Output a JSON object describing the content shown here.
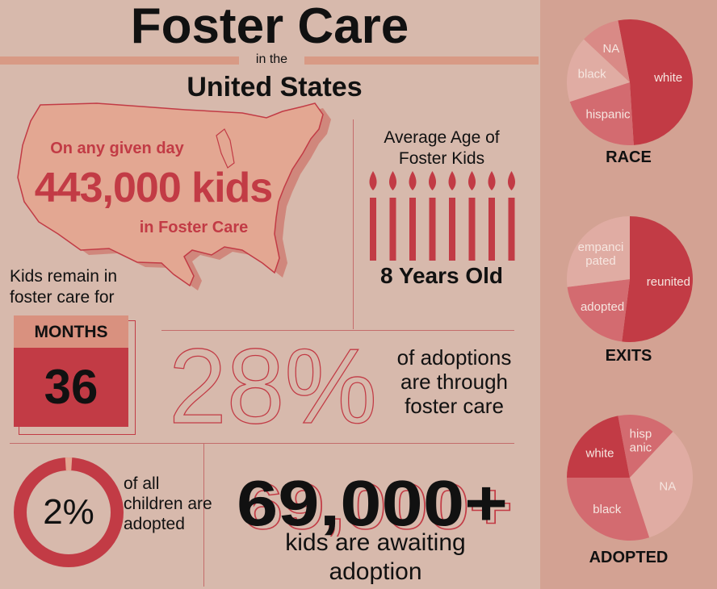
{
  "header": {
    "title": "Foster Care",
    "connector": "in the",
    "subtitle": "United States"
  },
  "map_panel": {
    "line1": "On any given day",
    "big": "443,000 kids",
    "line2": "in Foster Care"
  },
  "age_panel": {
    "title": "Average Age of Foster Kids",
    "candles": 8,
    "result": "8 Years Old"
  },
  "months_panel": {
    "intro": "Kids remain in foster care for",
    "unit": "MONTHS",
    "value": "36"
  },
  "adoptions_panel": {
    "percent": "28%",
    "text": "of adoptions are through foster care"
  },
  "adopted_panel": {
    "percent": "2%",
    "fraction": 0.02,
    "text": "of all children are adopted"
  },
  "awaiting_panel": {
    "number": "69,000+",
    "text": "kids are awaiting adoption"
  },
  "pies": [
    {
      "title": "RACE",
      "slices": [
        {
          "label": "white",
          "share": 0.52,
          "color": "#c23b45"
        },
        {
          "label": "hispanic",
          "share": 0.21,
          "color": "#d36b70"
        },
        {
          "label": "black",
          "share": 0.17,
          "color": "#e0aca3"
        },
        {
          "label": "NA",
          "share": 0.1,
          "color": "#d98a86"
        }
      ]
    },
    {
      "title": "EXITS",
      "slices": [
        {
          "label": "reunited",
          "share": 0.52,
          "color": "#c23b45"
        },
        {
          "label": "adopted",
          "share": 0.21,
          "color": "#d36b70"
        },
        {
          "label": "empanci pated",
          "share": 0.27,
          "color": "#e0aca3"
        }
      ]
    },
    {
      "title": "ADOPTED",
      "slices": [
        {
          "label": "white",
          "share": 0.22,
          "color": "#c23b45"
        },
        {
          "label": "hisp anic",
          "share": 0.15,
          "color": "#d36b70"
        },
        {
          "label": "NA",
          "share": 0.33,
          "color": "#e0aca3"
        },
        {
          "label": "black",
          "share": 0.3,
          "color": "#d36b70"
        }
      ]
    }
  ],
  "colors": {
    "background": "#d7b9ac",
    "sidebar": "#d3a293",
    "accent": "#c23b45",
    "accent_light": "#d89a85",
    "text": "#111111"
  }
}
